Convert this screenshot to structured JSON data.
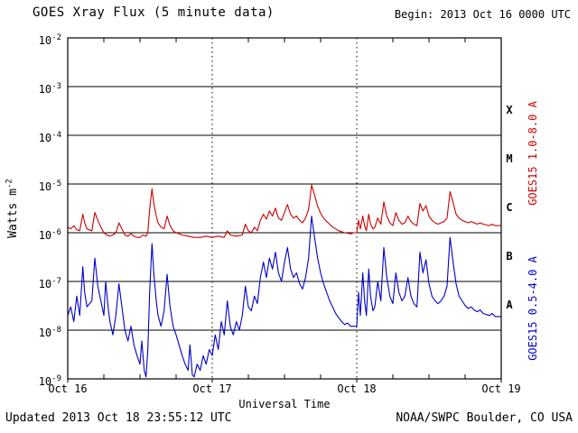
{
  "header": {
    "title": "GOES Xray Flux (5 minute data)",
    "begin": "Begin:  2013 Oct 16 0000 UTC"
  },
  "footer": {
    "updated": "Updated 2013 Oct 18 23:55:12 UTC",
    "source": "NOAA/SWPC Boulder, CO USA"
  },
  "axes": {
    "y_label_base": "Watts m",
    "y_label_exp": "-2",
    "x_label": "Universal Time",
    "y_tick_base": "10",
    "y_tick_exps": [
      "-2",
      "-3",
      "-4",
      "-5",
      "-6",
      "-7",
      "-8",
      "-9"
    ],
    "flare_classes": [
      {
        "label": "X",
        "log_mid": -3.5
      },
      {
        "label": "M",
        "log_mid": -4.5
      },
      {
        "label": "C",
        "log_mid": -5.5
      },
      {
        "label": "B",
        "log_mid": -6.5
      },
      {
        "label": "A",
        "log_mid": -7.5
      }
    ]
  },
  "colors": {
    "long_series": "#cc0000",
    "short_series": "#0000cc",
    "axis": "#000000",
    "background": "#ffffff"
  },
  "chart_data": {
    "type": "line",
    "title": "GOES Xray Flux (5 minute data)",
    "xlabel": "Universal Time",
    "ylabel": "Watts m^-2",
    "x_unit": "hours since 2013 Oct 16 0000 UTC",
    "x_range": [
      0,
      72
    ],
    "y_scale": "log10",
    "y_range": [
      1e-09,
      0.01
    ],
    "grid": {
      "horizontal": "every decade",
      "vertical_dotted_at": [
        24,
        48
      ]
    },
    "legend_position": "right, rotated",
    "x_ticks": [
      {
        "t": 0,
        "label": "Oct 16"
      },
      {
        "t": 24,
        "label": "Oct 17"
      },
      {
        "t": 48,
        "label": "Oct 18"
      },
      {
        "t": 72,
        "label": "Oct 19"
      }
    ],
    "series": [
      {
        "name": "GOES15 1.0-8.0 A",
        "color": "#cc0000",
        "points": [
          [
            0,
            1.3e-06
          ],
          [
            0.5,
            1.2e-06
          ],
          [
            1,
            1.4e-06
          ],
          [
            1.5,
            1.15e-06
          ],
          [
            2,
            1.1e-06
          ],
          [
            2.5,
            2.4e-06
          ],
          [
            2.8,
            1.6e-06
          ],
          [
            3.2,
            1.2e-06
          ],
          [
            4,
            1.1e-06
          ],
          [
            4.5,
            2.6e-06
          ],
          [
            5,
            1.8e-06
          ],
          [
            5.5,
            1.3e-06
          ],
          [
            6,
            1e-06
          ],
          [
            6.5,
            9e-07
          ],
          [
            7,
            8.5e-07
          ],
          [
            7.5,
            9e-07
          ],
          [
            8,
            1e-06
          ],
          [
            8.5,
            1.6e-06
          ],
          [
            9,
            1.2e-06
          ],
          [
            9.5,
            9e-07
          ],
          [
            10,
            8.5e-07
          ],
          [
            10.5,
            9.5e-07
          ],
          [
            11,
            8.5e-07
          ],
          [
            11.5,
            8e-07
          ],
          [
            12,
            8e-07
          ],
          [
            12.5,
            9e-07
          ],
          [
            13,
            8.5e-07
          ],
          [
            13.3,
            1e-06
          ],
          [
            13.6,
            3e-06
          ],
          [
            14,
            8e-06
          ],
          [
            14.3,
            4e-06
          ],
          [
            14.7,
            2.2e-06
          ],
          [
            15,
            1.6e-06
          ],
          [
            15.5,
            1.3e-06
          ],
          [
            16,
            1.2e-06
          ],
          [
            16.5,
            2.2e-06
          ],
          [
            17,
            1.4e-06
          ],
          [
            17.5,
            1.1e-06
          ],
          [
            18,
            1e-06
          ],
          [
            19,
            9e-07
          ],
          [
            20,
            8.5e-07
          ],
          [
            21,
            8e-07
          ],
          [
            22,
            8e-07
          ],
          [
            23,
            8.5e-07
          ],
          [
            24,
            8e-07
          ],
          [
            25,
            8.5e-07
          ],
          [
            26,
            8e-07
          ],
          [
            26.5,
            1.1e-06
          ],
          [
            27,
            9e-07
          ],
          [
            28,
            8.5e-07
          ],
          [
            29,
            9e-07
          ],
          [
            29.5,
            1.5e-06
          ],
          [
            30,
            1.1e-06
          ],
          [
            30.5,
            1e-06
          ],
          [
            31,
            1.3e-06
          ],
          [
            31.5,
            1.1e-06
          ],
          [
            32,
            1.8e-06
          ],
          [
            32.5,
            2.4e-06
          ],
          [
            33,
            1.9e-06
          ],
          [
            33.5,
            2.8e-06
          ],
          [
            34,
            2.2e-06
          ],
          [
            34.5,
            3.2e-06
          ],
          [
            35,
            2e-06
          ],
          [
            35.5,
            1.8e-06
          ],
          [
            36,
            2.6e-06
          ],
          [
            36.5,
            3.8e-06
          ],
          [
            37,
            2.4e-06
          ],
          [
            37.5,
            2e-06
          ],
          [
            38,
            2.2e-06
          ],
          [
            38.5,
            1.8e-06
          ],
          [
            39,
            1.6e-06
          ],
          [
            39.5,
            2e-06
          ],
          [
            40,
            3e-06
          ],
          [
            40.5,
            9.5e-06
          ],
          [
            41,
            6e-06
          ],
          [
            41.5,
            3.5e-06
          ],
          [
            42,
            2.5e-06
          ],
          [
            42.5,
            2e-06
          ],
          [
            43,
            1.7e-06
          ],
          [
            43.5,
            1.5e-06
          ],
          [
            44,
            1.3e-06
          ],
          [
            44.5,
            1.2e-06
          ],
          [
            45,
            1.1e-06
          ],
          [
            46,
            1e-06
          ],
          [
            47,
            9.5e-07
          ],
          [
            47.5,
            1e-06
          ],
          [
            48,
            1e-06
          ],
          [
            48.3,
            1.8e-06
          ],
          [
            48.6,
            1.2e-06
          ],
          [
            49,
            2.2e-06
          ],
          [
            49.3,
            1.4e-06
          ],
          [
            49.6,
            1.1e-06
          ],
          [
            50,
            2.4e-06
          ],
          [
            50.3,
            1.5e-06
          ],
          [
            50.7,
            1.2e-06
          ],
          [
            51,
            1.3e-06
          ],
          [
            51.5,
            2e-06
          ],
          [
            52,
            1.5e-06
          ],
          [
            52.5,
            4.3e-06
          ],
          [
            53,
            2.2e-06
          ],
          [
            53.5,
            1.6e-06
          ],
          [
            54,
            1.4e-06
          ],
          [
            54.5,
            2.6e-06
          ],
          [
            55,
            1.8e-06
          ],
          [
            55.5,
            1.5e-06
          ],
          [
            56,
            1.6e-06
          ],
          [
            56.5,
            2.2e-06
          ],
          [
            57,
            1.7e-06
          ],
          [
            57.5,
            1.5e-06
          ],
          [
            58,
            1.4e-06
          ],
          [
            58.5,
            4e-06
          ],
          [
            59,
            2.8e-06
          ],
          [
            59.5,
            3.6e-06
          ],
          [
            60,
            2.2e-06
          ],
          [
            60.5,
            1.8e-06
          ],
          [
            61,
            1.6e-06
          ],
          [
            61.5,
            1.5e-06
          ],
          [
            62,
            1.6e-06
          ],
          [
            62.5,
            1.7e-06
          ],
          [
            63,
            2e-06
          ],
          [
            63.5,
            7e-06
          ],
          [
            64,
            4.2e-06
          ],
          [
            64.5,
            2.4e-06
          ],
          [
            65,
            2e-06
          ],
          [
            65.5,
            1.8e-06
          ],
          [
            66,
            1.7e-06
          ],
          [
            66.5,
            1.6e-06
          ],
          [
            67,
            1.7e-06
          ],
          [
            67.5,
            1.6e-06
          ],
          [
            68,
            1.5e-06
          ],
          [
            68.5,
            1.6e-06
          ],
          [
            69,
            1.5e-06
          ],
          [
            70,
            1.4e-06
          ],
          [
            70.5,
            1.5e-06
          ],
          [
            71,
            1.4e-06
          ],
          [
            72,
            1.4e-06
          ]
        ]
      },
      {
        "name": "GOES15 0.5-4.0 A",
        "color": "#0000cc",
        "points": [
          [
            0,
            2e-08
          ],
          [
            0.5,
            3e-08
          ],
          [
            1,
            1.5e-08
          ],
          [
            1.5,
            5e-08
          ],
          [
            2,
            2e-08
          ],
          [
            2.5,
            2e-07
          ],
          [
            2.8,
            6e-08
          ],
          [
            3.2,
            3e-08
          ],
          [
            4,
            4e-08
          ],
          [
            4.5,
            3e-07
          ],
          [
            5,
            8e-08
          ],
          [
            5.5,
            4e-08
          ],
          [
            6,
            2e-08
          ],
          [
            6.3,
            1e-07
          ],
          [
            6.7,
            3e-08
          ],
          [
            7,
            1.5e-08
          ],
          [
            7.5,
            8e-09
          ],
          [
            8,
            2e-08
          ],
          [
            8.5,
            9e-08
          ],
          [
            9,
            3e-08
          ],
          [
            9.5,
            1e-08
          ],
          [
            10,
            6e-09
          ],
          [
            10.5,
            1.2e-08
          ],
          [
            11,
            5e-09
          ],
          [
            11.5,
            3e-09
          ],
          [
            12,
            2e-09
          ],
          [
            12.3,
            6e-09
          ],
          [
            12.7,
            1.5e-09
          ],
          [
            13,
            1.1e-09
          ],
          [
            13.3,
            4e-09
          ],
          [
            13.6,
            6e-08
          ],
          [
            14,
            6e-07
          ],
          [
            14.3,
            1.5e-07
          ],
          [
            14.7,
            4e-08
          ],
          [
            15,
            2e-08
          ],
          [
            15.5,
            1.2e-08
          ],
          [
            16,
            2.5e-08
          ],
          [
            16.5,
            1.4e-07
          ],
          [
            17,
            3e-08
          ],
          [
            17.5,
            1.2e-08
          ],
          [
            18,
            8e-09
          ],
          [
            18.5,
            5e-09
          ],
          [
            19,
            3e-09
          ],
          [
            19.5,
            2e-09
          ],
          [
            20,
            1.5e-09
          ],
          [
            20.3,
            5e-09
          ],
          [
            20.7,
            1.2e-09
          ],
          [
            21,
            1.1e-09
          ],
          [
            21.5,
            2e-09
          ],
          [
            22,
            1.5e-09
          ],
          [
            22.5,
            3e-09
          ],
          [
            23,
            2e-09
          ],
          [
            23.5,
            4e-09
          ],
          [
            24,
            3e-09
          ],
          [
            24.5,
            8e-09
          ],
          [
            25,
            4e-09
          ],
          [
            25.5,
            1.5e-08
          ],
          [
            26,
            8e-09
          ],
          [
            26.5,
            4e-08
          ],
          [
            27,
            1.2e-08
          ],
          [
            27.5,
            8e-09
          ],
          [
            28,
            1.5e-08
          ],
          [
            28.5,
            1e-08
          ],
          [
            29,
            2e-08
          ],
          [
            29.5,
            8e-08
          ],
          [
            30,
            3e-08
          ],
          [
            30.5,
            2.5e-08
          ],
          [
            31,
            5e-08
          ],
          [
            31.5,
            3.5e-08
          ],
          [
            32,
            1.2e-07
          ],
          [
            32.5,
            2.5e-07
          ],
          [
            33,
            1.2e-07
          ],
          [
            33.5,
            3e-07
          ],
          [
            34,
            1.8e-07
          ],
          [
            34.5,
            4e-07
          ],
          [
            35,
            1.5e-07
          ],
          [
            35.5,
            1e-07
          ],
          [
            36,
            2.5e-07
          ],
          [
            36.5,
            5e-07
          ],
          [
            37,
            1.8e-07
          ],
          [
            37.5,
            1.2e-07
          ],
          [
            38,
            1.5e-07
          ],
          [
            38.5,
            9e-08
          ],
          [
            39,
            7e-08
          ],
          [
            39.5,
            1.2e-07
          ],
          [
            40,
            3e-07
          ],
          [
            40.5,
            2.2e-06
          ],
          [
            41,
            8e-07
          ],
          [
            41.5,
            3e-07
          ],
          [
            42,
            1.5e-07
          ],
          [
            42.5,
            9e-08
          ],
          [
            43,
            6e-08
          ],
          [
            43.5,
            4e-08
          ],
          [
            44,
            3e-08
          ],
          [
            44.5,
            2.2e-08
          ],
          [
            45,
            1.8e-08
          ],
          [
            45.5,
            1.5e-08
          ],
          [
            46,
            1.3e-08
          ],
          [
            46.5,
            1.4e-08
          ],
          [
            47,
            1.2e-08
          ],
          [
            48,
            1.2e-08
          ],
          [
            48.3,
            6e-08
          ],
          [
            48.6,
            2e-08
          ],
          [
            49,
            1.5e-07
          ],
          [
            49.3,
            4e-08
          ],
          [
            49.6,
            2e-08
          ],
          [
            50,
            1.8e-07
          ],
          [
            50.3,
            5e-08
          ],
          [
            50.7,
            2.5e-08
          ],
          [
            51,
            3e-08
          ],
          [
            51.5,
            1e-07
          ],
          [
            52,
            4e-08
          ],
          [
            52.5,
            5e-07
          ],
          [
            53,
            1.2e-07
          ],
          [
            53.5,
            5e-08
          ],
          [
            54,
            3.5e-08
          ],
          [
            54.5,
            1.5e-07
          ],
          [
            55,
            6e-08
          ],
          [
            55.5,
            4e-08
          ],
          [
            56,
            5e-08
          ],
          [
            56.5,
            1.2e-07
          ],
          [
            57,
            5e-08
          ],
          [
            57.5,
            3.5e-08
          ],
          [
            58,
            3e-08
          ],
          [
            58.5,
            4e-07
          ],
          [
            59,
            1.5e-07
          ],
          [
            59.5,
            2.8e-07
          ],
          [
            60,
            9e-08
          ],
          [
            60.5,
            5e-08
          ],
          [
            61,
            4e-08
          ],
          [
            61.5,
            3.5e-08
          ],
          [
            62,
            4e-08
          ],
          [
            62.5,
            5e-08
          ],
          [
            63,
            8e-08
          ],
          [
            63.5,
            8e-07
          ],
          [
            64,
            2.5e-07
          ],
          [
            64.5,
            9e-08
          ],
          [
            65,
            5e-08
          ],
          [
            65.5,
            4e-08
          ],
          [
            66,
            3.2e-08
          ],
          [
            66.5,
            2.8e-08
          ],
          [
            67,
            3e-08
          ],
          [
            67.5,
            2.6e-08
          ],
          [
            68,
            2.4e-08
          ],
          [
            68.5,
            2.6e-08
          ],
          [
            69,
            2.2e-08
          ],
          [
            70,
            2e-08
          ],
          [
            70.5,
            2.2e-08
          ],
          [
            71,
            1.9e-08
          ],
          [
            72,
            1.9e-08
          ]
        ]
      }
    ]
  }
}
